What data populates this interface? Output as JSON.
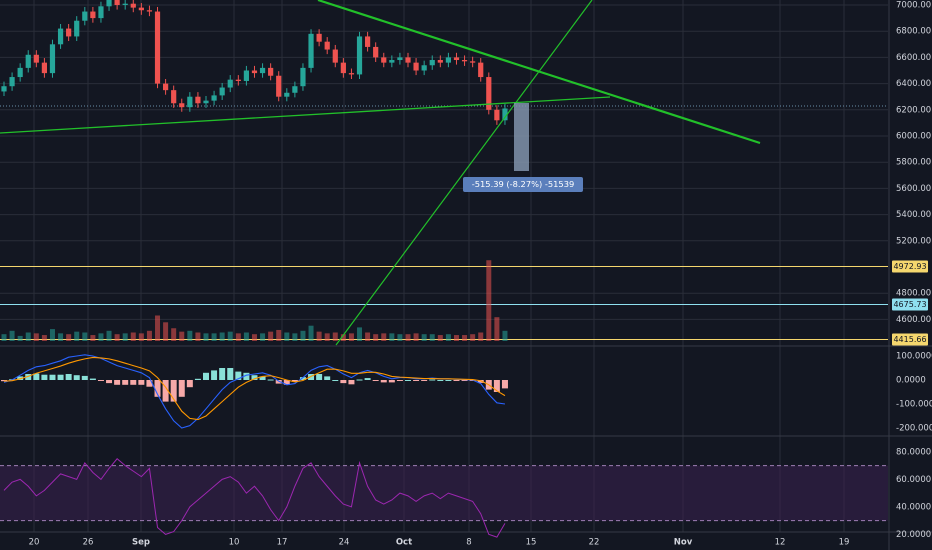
{
  "colors": {
    "background": "#131722",
    "grid": "#2a2e39",
    "up": "#26a69a",
    "down": "#ef5350",
    "axis_text": "#d1d4dc",
    "trendline": "#22c02a",
    "level_yellow": "#f5d76e",
    "level_cyan": "#8fe0f0",
    "measure": "#8193ab",
    "macd_line": "#2962ff",
    "signal_line": "#ff9800",
    "rsi_line": "#9c27b0",
    "rsi_band": "#3b2150"
  },
  "chart_data": [
    {
      "type": "candlestick",
      "panel": "price",
      "y_ticks": [
        "7000.00",
        "6800.00",
        "6600.00",
        "6400.00",
        "6200.00",
        "6000.00",
        "5800.00",
        "5600.00",
        "5400.00",
        "5200.00",
        "4800.00",
        "4600.00"
      ],
      "ylim": [
        4380,
        7020
      ],
      "x_ticks": [
        "20",
        "26",
        "Sep",
        "10",
        "17",
        "24",
        "Oct",
        "8",
        "15",
        "22",
        "Nov",
        "12",
        "19"
      ],
      "closes": [
        6380,
        6450,
        6520,
        6620,
        6560,
        6480,
        6700,
        6820,
        6760,
        6880,
        6950,
        6900,
        6990,
        7050,
        7000,
        7010,
        6980,
        6960,
        6950,
        6400,
        6350,
        6250,
        6220,
        6300,
        6250,
        6270,
        6310,
        6370,
        6430,
        6420,
        6500,
        6480,
        6520,
        6460,
        6300,
        6330,
        6380,
        6520,
        6780,
        6720,
        6660,
        6560,
        6480,
        6470,
        6760,
        6680,
        6600,
        6560,
        6580,
        6600,
        6560,
        6500,
        6540,
        6580,
        6560,
        6600,
        6580,
        6570,
        6560,
        6450,
        6200,
        6120,
        6210
      ],
      "volumes": [
        8,
        12,
        6,
        10,
        9,
        7,
        14,
        9,
        8,
        11,
        10,
        7,
        9,
        12,
        8,
        9,
        10,
        9,
        12,
        30,
        22,
        15,
        11,
        12,
        10,
        9,
        9,
        10,
        11,
        9,
        10,
        8,
        9,
        11,
        13,
        10,
        9,
        12,
        18,
        11,
        9,
        10,
        8,
        9,
        16,
        10,
        8,
        9,
        9,
        8,
        8,
        9,
        8,
        8,
        7,
        8,
        7,
        7,
        8,
        10,
        95,
        28,
        12
      ],
      "price_labels": [
        "4972.93",
        "4675.73",
        "4415.66"
      ],
      "measure_label": "-515.39 (-8.27%) -51539"
    },
    {
      "type": "macd",
      "panel": "macd",
      "y_ticks": [
        "100.0000",
        "0.0000",
        "-100.0000",
        "-200.0000"
      ],
      "ylim": [
        -220,
        120
      ],
      "macd": [
        -10,
        0,
        20,
        40,
        55,
        60,
        70,
        80,
        95,
        100,
        105,
        100,
        90,
        75,
        60,
        50,
        40,
        30,
        10,
        -60,
        -120,
        -170,
        -200,
        -190,
        -160,
        -120,
        -80,
        -40,
        -10,
        5,
        20,
        25,
        30,
        20,
        -5,
        -20,
        -15,
        10,
        40,
        55,
        60,
        45,
        25,
        10,
        30,
        40,
        30,
        15,
        5,
        10,
        10,
        5,
        5,
        8,
        5,
        5,
        3,
        2,
        0,
        -15,
        -60,
        -95,
        -100
      ],
      "signal": [
        -5,
        -3,
        5,
        15,
        28,
        38,
        48,
        58,
        70,
        80,
        88,
        94,
        92,
        88,
        80,
        70,
        60,
        50,
        38,
        10,
        -30,
        -80,
        -130,
        -160,
        -165,
        -150,
        -120,
        -90,
        -60,
        -30,
        -10,
        5,
        15,
        18,
        10,
        0,
        -8,
        -2,
        15,
        30,
        45,
        45,
        38,
        28,
        28,
        32,
        32,
        25,
        15,
        12,
        10,
        8,
        6,
        6,
        5,
        5,
        4,
        3,
        2,
        -3,
        -20,
        -45,
        -65
      ]
    },
    {
      "type": "line",
      "panel": "rsi",
      "y_ticks": [
        "80.0000",
        "60.0000",
        "40.0000",
        "20.0000"
      ],
      "ylim": [
        15,
        85
      ],
      "band": [
        30,
        70
      ],
      "values": [
        52,
        58,
        60,
        55,
        48,
        52,
        58,
        64,
        62,
        60,
        72,
        65,
        60,
        68,
        75,
        70,
        66,
        62,
        68,
        25,
        20,
        22,
        30,
        40,
        45,
        50,
        55,
        60,
        62,
        58,
        50,
        55,
        48,
        38,
        30,
        40,
        55,
        68,
        72,
        62,
        55,
        48,
        42,
        40,
        72,
        55,
        45,
        42,
        45,
        50,
        48,
        44,
        48,
        50,
        46,
        50,
        48,
        46,
        44,
        35,
        20,
        18,
        28
      ]
    }
  ]
}
